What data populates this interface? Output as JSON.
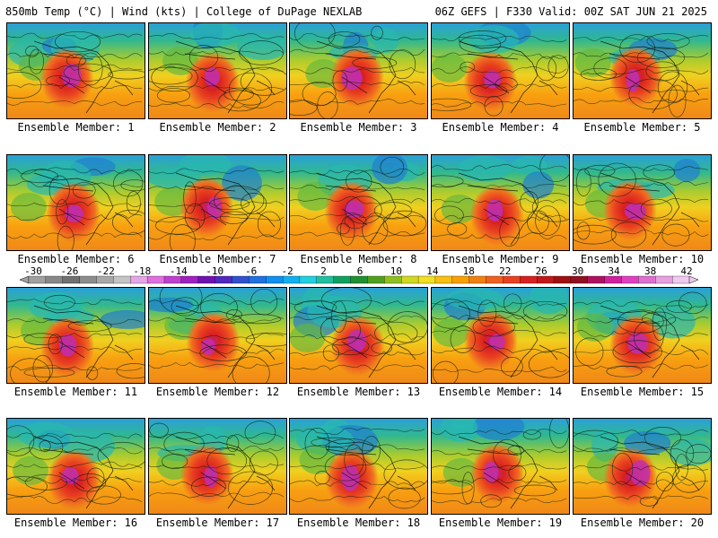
{
  "header": {
    "left": "850mb Temp (°C) | Wind (kts) | College of DuPage NEXLAB",
    "right": "06Z GEFS | F330 Valid: 00Z SAT JUN 21 2025"
  },
  "member_prefix": "Ensemble Member: ",
  "members": [
    1,
    2,
    3,
    4,
    5,
    6,
    7,
    8,
    9,
    10,
    11,
    12,
    13,
    14,
    15,
    16,
    17,
    18,
    19,
    20
  ],
  "colorbar": {
    "labels": [
      "-30",
      "-26",
      "-22",
      "-18",
      "-14",
      "-10",
      "-6",
      "-2",
      "2",
      "6",
      "10",
      "14",
      "18",
      "22",
      "26",
      "30",
      "34",
      "38",
      "42"
    ],
    "colors": [
      "#a0a0a0",
      "#888888",
      "#707070",
      "#8c8c8c",
      "#a8a8a8",
      "#c4c4c4",
      "#e6a6e6",
      "#e070e0",
      "#c040d0",
      "#a020c0",
      "#7010b0",
      "#5028c0",
      "#3050d0",
      "#2070e0",
      "#1090f0",
      "#10b0f0",
      "#20d0e0",
      "#20c0a0",
      "#10a060",
      "#209030",
      "#50a020",
      "#90c020",
      "#d0d820",
      "#f0e020",
      "#f8c010",
      "#f8a000",
      "#f08010",
      "#f06020",
      "#e84020",
      "#d82020",
      "#c01818",
      "#a01010",
      "#901020",
      "#b01060",
      "#d020a0",
      "#e040c0",
      "#e070d0",
      "#e8a0e0",
      "#f0c8f0"
    ]
  }
}
